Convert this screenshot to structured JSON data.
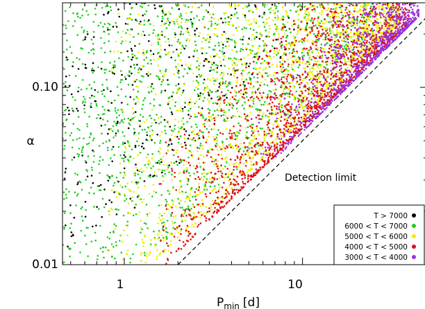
{
  "chart_data": {
    "type": "scatter",
    "title": "",
    "xlabel": "P",
    "xlabel_sub": "min",
    "xlabel_unit": "[d]",
    "ylabel": "α",
    "x_scale": "log",
    "y_scale": "log",
    "xlim": [
      0.45,
      50
    ],
    "ylim": [
      0.01,
      0.3
    ],
    "x_ticks": [
      1,
      10
    ],
    "x_tick_labels": [
      "1",
      "10"
    ],
    "y_ticks": [
      0.01,
      0.1
    ],
    "y_tick_labels": [
      "0.01",
      "0.10"
    ],
    "grid": false,
    "legend_position": "bottom-right",
    "annotation": "Detection limit",
    "detection_limit": {
      "x": [
        2.0,
        50
      ],
      "y": [
        0.01,
        0.25
      ],
      "style": "dashed"
    },
    "series": [
      {
        "name": "T > 7000",
        "color": "#000000",
        "n": 320,
        "x_range": [
          0.45,
          12
        ],
        "y_range": [
          0.012,
          0.3
        ],
        "density": "uniform"
      },
      {
        "name": "6000 < T < 7000",
        "color": "#22cc22",
        "n": 1400,
        "x_range": [
          0.45,
          25
        ],
        "y_range": [
          0.01,
          0.3
        ],
        "density": "wedge"
      },
      {
        "name": "5000 < T < 6000",
        "color": "#eeee00",
        "n": 1800,
        "x_range": [
          0.8,
          35
        ],
        "y_range": [
          0.01,
          0.3
        ],
        "density": "wedge-upper"
      },
      {
        "name": "4000 < T < 5000",
        "color": "#dd1111",
        "n": 1500,
        "x_range": [
          1.5,
          40
        ],
        "y_range": [
          0.01,
          0.3
        ],
        "density": "diagonal-band"
      },
      {
        "name": "3000 < T < 4000",
        "color": "#9933dd",
        "n": 900,
        "x_range": [
          5,
          45
        ],
        "y_range": [
          0.02,
          0.3
        ],
        "density": "diagonal-edge"
      }
    ]
  }
}
